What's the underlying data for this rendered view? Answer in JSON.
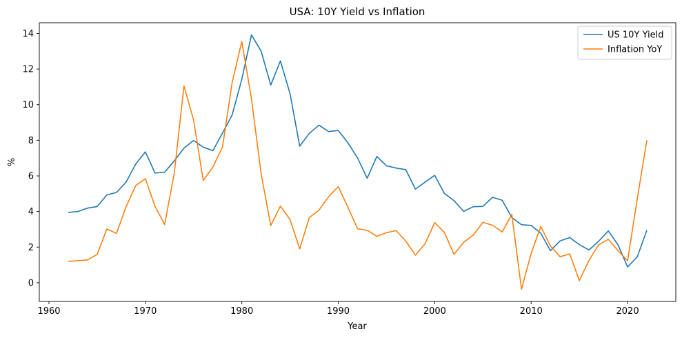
{
  "chart_data": {
    "type": "line",
    "title": "USA: 10Y Yield vs Inflation",
    "xlabel": "Year",
    "ylabel": "%",
    "xlim": [
      1959.0,
      2025.0
    ],
    "ylim": [
      -1.05,
      14.6
    ],
    "xticks": [
      1960,
      1970,
      1980,
      1990,
      2000,
      2010,
      2020
    ],
    "yticks": [
      0,
      2,
      4,
      6,
      8,
      10,
      12,
      14
    ],
    "xtick_labels": [
      "1960",
      "1970",
      "1980",
      "1990",
      "2000",
      "2010",
      "2020"
    ],
    "ytick_labels": [
      "0",
      "2",
      "4",
      "6",
      "8",
      "10",
      "12",
      "14"
    ],
    "grid": false,
    "legend_position": "top-right",
    "x": [
      1962,
      1963,
      1964,
      1965,
      1966,
      1967,
      1968,
      1969,
      1970,
      1971,
      1972,
      1973,
      1974,
      1975,
      1976,
      1977,
      1978,
      1979,
      1980,
      1981,
      1982,
      1983,
      1984,
      1985,
      1986,
      1987,
      1988,
      1989,
      1990,
      1991,
      1992,
      1993,
      1994,
      1995,
      1996,
      1997,
      1998,
      1999,
      2000,
      2001,
      2002,
      2003,
      2004,
      2005,
      2006,
      2007,
      2008,
      2009,
      2010,
      2011,
      2012,
      2013,
      2014,
      2015,
      2016,
      2017,
      2018,
      2019,
      2020,
      2021,
      2022
    ],
    "series": [
      {
        "name": "US 10Y Yield",
        "color": "#1f77b4",
        "values": [
          3.95,
          4.0,
          4.19,
          4.28,
          4.93,
          5.07,
          5.65,
          6.67,
          7.35,
          6.16,
          6.21,
          6.85,
          7.56,
          7.99,
          7.61,
          7.42,
          8.41,
          9.43,
          11.43,
          13.92,
          13.01,
          11.1,
          12.46,
          10.62,
          7.67,
          8.39,
          8.85,
          8.49,
          8.55,
          7.86,
          7.01,
          5.87,
          7.09,
          6.57,
          6.44,
          6.35,
          5.26,
          5.65,
          6.03,
          5.02,
          4.61,
          4.01,
          4.27,
          4.29,
          4.8,
          4.63,
          3.66,
          3.26,
          3.22,
          2.78,
          1.8,
          2.35,
          2.54,
          2.14,
          1.84,
          2.33,
          2.91,
          2.14,
          0.89,
          1.45,
          2.95
        ]
      },
      {
        "name": "Inflation YoY",
        "color": "#ff7f0e",
        "values": [
          1.2,
          1.24,
          1.28,
          1.59,
          3.02,
          2.77,
          4.27,
          5.46,
          5.84,
          4.29,
          3.27,
          6.18,
          11.05,
          9.14,
          5.74,
          6.5,
          7.63,
          11.25,
          13.55,
          10.33,
          6.13,
          3.21,
          4.3,
          3.55,
          1.9,
          3.66,
          4.08,
          4.83,
          5.4,
          4.24,
          3.03,
          2.95,
          2.61,
          2.81,
          2.93,
          2.34,
          1.55,
          2.19,
          3.38,
          2.83,
          1.59,
          2.27,
          2.68,
          3.39,
          3.23,
          2.85,
          3.84,
          -0.36,
          1.64,
          3.16,
          2.07,
          1.46,
          1.62,
          0.12,
          1.26,
          2.13,
          2.44,
          1.81,
          1.23,
          4.7,
          8.0
        ]
      }
    ]
  }
}
